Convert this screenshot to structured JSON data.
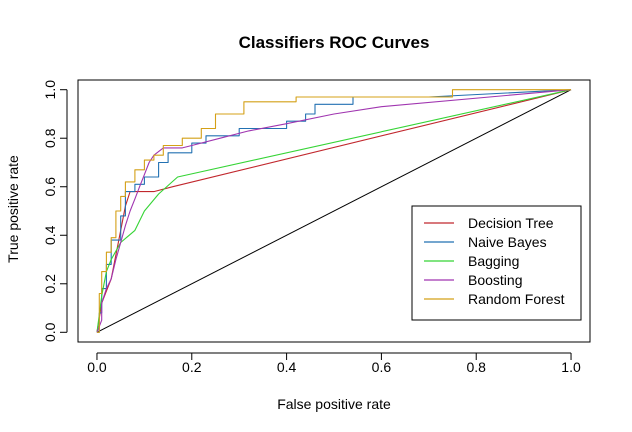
{
  "chart_data": {
    "type": "line",
    "title": "Classifiers ROC Curves",
    "xlabel": "False positive rate",
    "ylabel": "True positive rate",
    "xlim": [
      -0.04,
      1.04
    ],
    "ylim": [
      -0.04,
      1.04
    ],
    "x_ticks": [
      "0.0",
      "0.2",
      "0.4",
      "0.6",
      "0.8",
      "1.0"
    ],
    "y_ticks": [
      "0.0",
      "0.2",
      "0.4",
      "0.6",
      "0.8",
      "1.0"
    ],
    "grid": false,
    "legend_position": "bottom-right",
    "reference_line": {
      "x": [
        0,
        1
      ],
      "y": [
        0,
        1
      ],
      "color": "#000000"
    },
    "series": [
      {
        "name": "Decision Tree",
        "color": "#C1272D",
        "x": [
          0,
          0.01,
          0.02,
          0.03,
          0.05,
          0.06,
          0.07,
          0.12,
          0.16,
          1.0
        ],
        "y": [
          0,
          0.12,
          0.17,
          0.22,
          0.42,
          0.52,
          0.58,
          0.58,
          0.6,
          1.0
        ]
      },
      {
        "name": "Naive Bayes",
        "color": "#2271B2",
        "x": [
          0,
          0.005,
          0.005,
          0.01,
          0.01,
          0.02,
          0.02,
          0.03,
          0.03,
          0.05,
          0.05,
          0.06,
          0.06,
          0.08,
          0.08,
          0.1,
          0.1,
          0.13,
          0.13,
          0.15,
          0.15,
          0.2,
          0.2,
          0.23,
          0.23,
          0.3,
          0.3,
          0.4,
          0.4,
          0.44,
          0.44,
          0.46,
          0.46,
          0.54,
          0.54,
          0.7,
          1.0
        ],
        "y": [
          0,
          0,
          0.08,
          0.08,
          0.18,
          0.18,
          0.28,
          0.28,
          0.38,
          0.38,
          0.48,
          0.48,
          0.58,
          0.58,
          0.61,
          0.61,
          0.64,
          0.64,
          0.7,
          0.7,
          0.74,
          0.74,
          0.78,
          0.78,
          0.81,
          0.81,
          0.84,
          0.84,
          0.87,
          0.87,
          0.9,
          0.9,
          0.94,
          0.94,
          0.97,
          0.97,
          1.0
        ]
      },
      {
        "name": "Bagging",
        "color": "#35D435",
        "x": [
          0,
          0.01,
          0.02,
          0.03,
          0.05,
          0.08,
          0.1,
          0.13,
          0.17,
          1.0
        ],
        "y": [
          0,
          0.15,
          0.25,
          0.3,
          0.37,
          0.42,
          0.5,
          0.57,
          0.64,
          1.0
        ]
      },
      {
        "name": "Boosting",
        "color": "#A035B0",
        "x": [
          0,
          0.01,
          0.01,
          0.02,
          0.03,
          0.04,
          0.05,
          0.06,
          0.07,
          0.08,
          0.09,
          0.1,
          0.11,
          0.12,
          0.14,
          0.18,
          0.2,
          0.26,
          0.32,
          0.4,
          0.5,
          0.6,
          1.0
        ],
        "y": [
          0,
          0.05,
          0.12,
          0.18,
          0.22,
          0.3,
          0.37,
          0.44,
          0.5,
          0.55,
          0.6,
          0.65,
          0.7,
          0.73,
          0.76,
          0.76,
          0.77,
          0.8,
          0.83,
          0.86,
          0.9,
          0.93,
          1.0
        ]
      },
      {
        "name": "Random Forest",
        "color": "#D4A017",
        "x": [
          0,
          0.005,
          0.005,
          0.01,
          0.01,
          0.02,
          0.02,
          0.03,
          0.03,
          0.04,
          0.04,
          0.05,
          0.05,
          0.06,
          0.06,
          0.08,
          0.08,
          0.1,
          0.1,
          0.12,
          0.12,
          0.14,
          0.14,
          0.18,
          0.18,
          0.22,
          0.22,
          0.25,
          0.25,
          0.31,
          0.31,
          0.42,
          0.42,
          0.75,
          0.75,
          1.0
        ],
        "y": [
          0,
          0,
          0.16,
          0.16,
          0.25,
          0.25,
          0.33,
          0.33,
          0.39,
          0.39,
          0.5,
          0.5,
          0.56,
          0.56,
          0.62,
          0.62,
          0.67,
          0.67,
          0.71,
          0.71,
          0.73,
          0.73,
          0.77,
          0.77,
          0.8,
          0.8,
          0.84,
          0.84,
          0.9,
          0.9,
          0.95,
          0.95,
          0.97,
          0.97,
          1.0,
          1.0
        ]
      }
    ]
  }
}
